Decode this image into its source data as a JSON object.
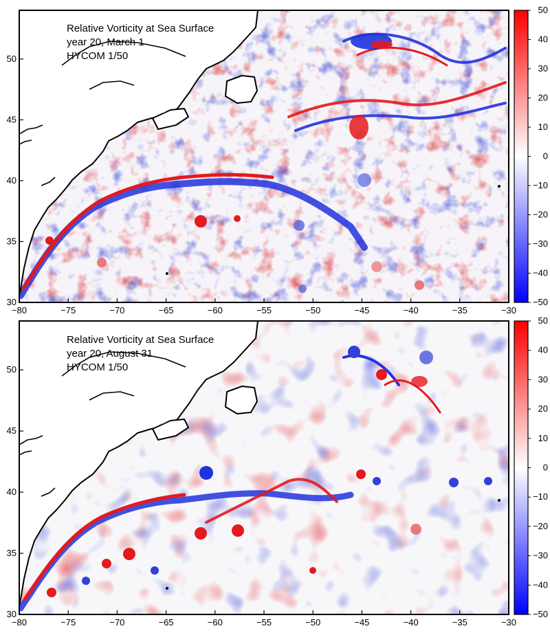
{
  "panels": [
    {
      "title_lines": [
        "Relative Vorticity at Sea Surface",
        "year 20, March  1",
        "HYCOM 1/50"
      ]
    },
    {
      "title_lines": [
        "Relative Vorticity at Sea Surface",
        "year 20, August 31",
        "HYCOM 1/50"
      ]
    }
  ],
  "axes": {
    "x_ticks": [
      -80,
      -75,
      -70,
      -65,
      -60,
      -55,
      -50,
      -45,
      -40,
      -35,
      -30
    ],
    "x_tick_labels": [
      "−80",
      "−75",
      "−70",
      "−65",
      "−60",
      "−55",
      "−50",
      "−45",
      "−40",
      "−35",
      "−30"
    ],
    "y_ticks": [
      30,
      35,
      40,
      45,
      50
    ],
    "y_tick_labels": [
      "30",
      "35",
      "40",
      "45",
      "50"
    ],
    "x_range": [
      -80,
      -30
    ],
    "y_range": [
      30,
      54
    ]
  },
  "colorbar": {
    "ticks": [
      50,
      40,
      30,
      20,
      10,
      0,
      -10,
      -20,
      -30,
      -40,
      -50
    ],
    "tick_labels": [
      "50",
      "40",
      "30",
      "20",
      "10",
      "0",
      "−10",
      "−20",
      "−30",
      "−40",
      "−50"
    ],
    "range": [
      -50,
      50
    ],
    "colors": {
      "max": "#ff0000",
      "mid": "#ffffff",
      "min": "#0000ff"
    }
  },
  "colors": {
    "positive": "#e8141c",
    "negative": "#1c2fd8",
    "land": "#ffffff",
    "coast": "#000000",
    "background": "#f6f4f8"
  }
}
